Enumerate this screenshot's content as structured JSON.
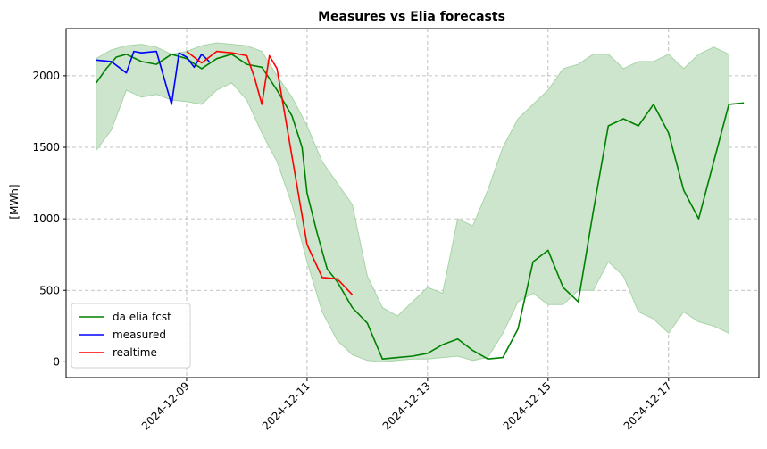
{
  "chart_data": {
    "type": "line",
    "title": "Measures vs Elia forecasts",
    "xlabel": "",
    "ylabel": "[MWh]",
    "x_ticks": [
      "2024-12-09",
      "2024-12-11",
      "2024-12-13",
      "2024-12-15",
      "2024-12-17"
    ],
    "y_ticks": [
      0,
      500,
      1000,
      1500,
      2000
    ],
    "xlim": [
      "2024-12-07T00:00",
      "2024-12-18T12:00"
    ],
    "ylim": [
      -110,
      2330
    ],
    "grid": true,
    "legend_position": "lower-left",
    "band": {
      "color": "#cce5cc",
      "edge_color": "#a8d4a8",
      "x": [
        "2024-12-07T12:00",
        "2024-12-07T18:00",
        "2024-12-08T00:00",
        "2024-12-08T06:00",
        "2024-12-08T12:00",
        "2024-12-08T18:00",
        "2024-12-09T00:00",
        "2024-12-09T06:00",
        "2024-12-09T12:00",
        "2024-12-09T18:00",
        "2024-12-10T00:00",
        "2024-12-10T06:00",
        "2024-12-10T12:00",
        "2024-12-10T18:00",
        "2024-12-11T00:00",
        "2024-12-11T06:00",
        "2024-12-11T12:00",
        "2024-12-11T18:00",
        "2024-12-12T00:00",
        "2024-12-12T06:00",
        "2024-12-12T12:00",
        "2024-12-12T18:00",
        "2024-12-13T00:00",
        "2024-12-13T06:00",
        "2024-12-13T12:00",
        "2024-12-13T18:00",
        "2024-12-14T00:00",
        "2024-12-14T06:00",
        "2024-12-14T12:00",
        "2024-12-14T18:00",
        "2024-12-15T00:00",
        "2024-12-15T06:00",
        "2024-12-15T12:00",
        "2024-12-15T18:00",
        "2024-12-16T00:00",
        "2024-12-16T06:00",
        "2024-12-16T12:00",
        "2024-12-16T18:00",
        "2024-12-17T00:00",
        "2024-12-17T06:00",
        "2024-12-17T12:00",
        "2024-12-17T18:00",
        "2024-12-18T00:00"
      ],
      "upper": [
        2120,
        2180,
        2210,
        2220,
        2200,
        2150,
        2170,
        2210,
        2230,
        2220,
        2210,
        2170,
        2000,
        1850,
        1650,
        1400,
        1250,
        1100,
        600,
        380,
        320,
        420,
        520,
        480,
        1000,
        950,
        1200,
        1500,
        1700,
        1800,
        1900,
        2050,
        2080,
        2150,
        2150,
        2050,
        2100,
        2100,
        2150,
        2050,
        2150,
        2200,
        2150
      ],
      "lower": [
        1480,
        1620,
        1900,
        1850,
        1870,
        1830,
        1820,
        1800,
        1900,
        1950,
        1830,
        1600,
        1400,
        1100,
        700,
        350,
        150,
        50,
        10,
        0,
        10,
        20,
        20,
        30,
        40,
        10,
        30,
        200,
        420,
        480,
        400,
        400,
        500,
        500,
        700,
        600,
        350,
        300,
        200,
        350,
        280,
        250,
        200
      ]
    },
    "series": [
      {
        "name": "da elia fcst",
        "color": "#008000",
        "x": [
          "2024-12-07T12:00",
          "2024-12-07T16:00",
          "2024-12-07T20:00",
          "2024-12-08T00:00",
          "2024-12-08T06:00",
          "2024-12-08T12:00",
          "2024-12-08T18:00",
          "2024-12-09T00:00",
          "2024-12-09T06:00",
          "2024-12-09T12:00",
          "2024-12-09T18:00",
          "2024-12-10T00:00",
          "2024-12-10T06:00",
          "2024-12-10T12:00",
          "2024-12-10T18:00",
          "2024-12-10T22:00",
          "2024-12-11T00:00",
          "2024-12-11T04:00",
          "2024-12-11T08:00",
          "2024-12-11T12:00",
          "2024-12-11T18:00",
          "2024-12-12T00:00",
          "2024-12-12T06:00",
          "2024-12-12T12:00",
          "2024-12-12T18:00",
          "2024-12-13T00:00",
          "2024-12-13T06:00",
          "2024-12-13T12:00",
          "2024-12-13T18:00",
          "2024-12-14T00:00",
          "2024-12-14T06:00",
          "2024-12-14T12:00",
          "2024-12-14T18:00",
          "2024-12-15T00:00",
          "2024-12-15T06:00",
          "2024-12-15T12:00",
          "2024-12-15T18:00",
          "2024-12-16T00:00",
          "2024-12-16T06:00",
          "2024-12-16T12:00",
          "2024-12-16T18:00",
          "2024-12-17T00:00",
          "2024-12-17T06:00",
          "2024-12-17T12:00",
          "2024-12-17T18:00",
          "2024-12-18T00:00",
          "2024-12-18T06:00"
        ],
        "values": [
          1950,
          2050,
          2130,
          2150,
          2100,
          2080,
          2150,
          2120,
          2050,
          2120,
          2150,
          2080,
          2060,
          1900,
          1720,
          1500,
          1180,
          900,
          650,
          560,
          380,
          270,
          20,
          30,
          40,
          60,
          120,
          160,
          80,
          20,
          30,
          230,
          700,
          780,
          520,
          420,
          1050,
          1650,
          1700,
          1650,
          1800,
          1600,
          1200,
          1000,
          1400,
          1800,
          1810
        ]
      },
      {
        "name": "measured",
        "color": "#0000ff",
        "x": [
          "2024-12-07T12:00",
          "2024-12-07T18:00",
          "2024-12-08T00:00",
          "2024-12-08T03:00",
          "2024-12-08T06:00",
          "2024-12-08T12:00",
          "2024-12-08T18:00",
          "2024-12-08T21:00",
          "2024-12-09T00:00",
          "2024-12-09T03:00",
          "2024-12-09T06:00",
          "2024-12-09T09:00"
        ],
        "values": [
          2110,
          2100,
          2020,
          2170,
          2160,
          2170,
          1800,
          2160,
          2130,
          2060,
          2150,
          2100
        ]
      },
      {
        "name": "realtime",
        "color": "#ff0000",
        "x": [
          "2024-12-09T00:00",
          "2024-12-09T06:00",
          "2024-12-09T12:00",
          "2024-12-09T18:00",
          "2024-12-10T00:00",
          "2024-12-10T03:00",
          "2024-12-10T06:00",
          "2024-12-10T09:00",
          "2024-12-10T12:00",
          "2024-12-11T00:00",
          "2024-12-11T06:00",
          "2024-12-11T12:00",
          "2024-12-11T18:00"
        ],
        "values": [
          2170,
          2090,
          2170,
          2160,
          2140,
          1990,
          1800,
          2140,
          2050,
          820,
          590,
          580,
          470
        ]
      }
    ]
  }
}
